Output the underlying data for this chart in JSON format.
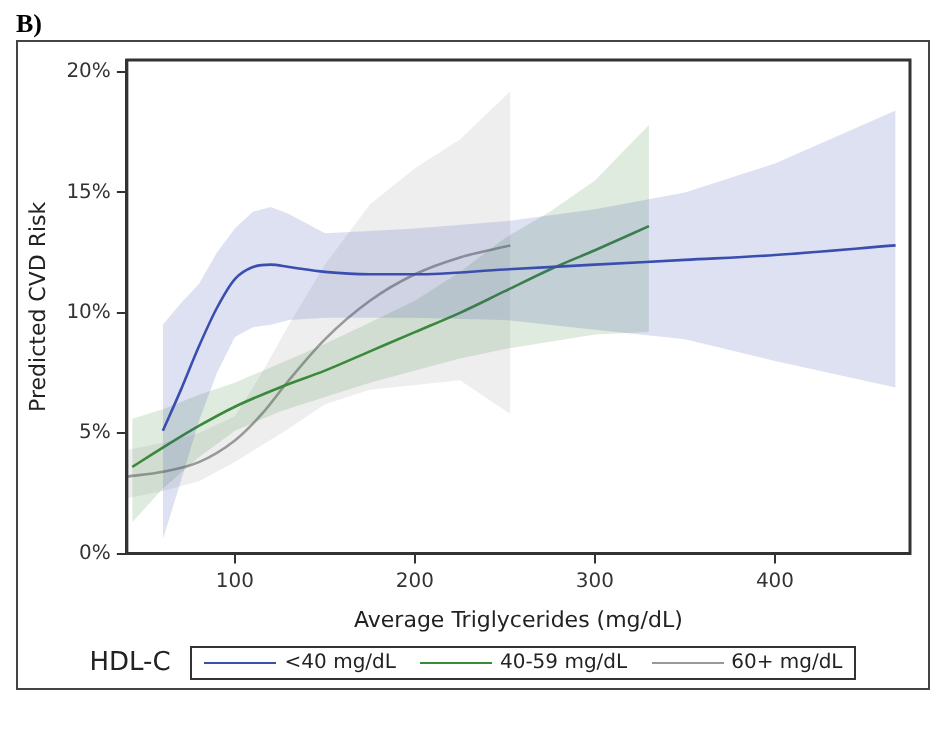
{
  "chart_data": {
    "type": "line",
    "title": "B)",
    "xlabel": "Average Triglycerides (mg/dL)",
    "ylabel": "Predicted CVD Risk",
    "legend_title": "HDL-C",
    "legend": "bottom",
    "grid": false,
    "marker": "none",
    "line_style": "solid",
    "xlim": [
      40,
      475
    ],
    "xticks": [
      100,
      200,
      300,
      400
    ],
    "ylim": [
      0,
      20.5
    ],
    "yticks": [
      {
        "value": 0,
        "label": "0%"
      },
      {
        "value": 5,
        "label": "5%"
      },
      {
        "value": 10,
        "label": "10%"
      },
      {
        "value": 15,
        "label": "15%"
      },
      {
        "value": 20,
        "label": "20%"
      }
    ],
    "series": [
      {
        "name": "<40 mg/dL",
        "color": "#3a4fb0",
        "x": [
          60,
          70,
          80,
          90,
          100,
          110,
          120,
          130,
          150,
          175,
          200,
          250,
          300,
          350,
          400,
          467
        ],
        "values": [
          5.1,
          6.8,
          8.6,
          10.2,
          11.4,
          11.9,
          12.0,
          11.9,
          11.7,
          11.6,
          11.6,
          11.8,
          12.0,
          12.2,
          12.4,
          12.8
        ],
        "upper": [
          9.5,
          10.4,
          11.2,
          12.5,
          13.5,
          14.2,
          14.4,
          14.1,
          13.3,
          13.4,
          13.5,
          13.8,
          14.3,
          15.0,
          16.2,
          18.4
        ],
        "lower": [
          0.6,
          3.0,
          5.5,
          7.5,
          9.0,
          9.4,
          9.5,
          9.7,
          9.8,
          9.8,
          9.8,
          9.7,
          9.3,
          8.9,
          8.0,
          6.9
        ]
      },
      {
        "name": "40-59 mg/dL",
        "color": "#3a8a3a",
        "x": [
          43,
          60,
          80,
          100,
          125,
          150,
          175,
          200,
          225,
          250,
          275,
          300,
          330
        ],
        "values": [
          3.6,
          4.4,
          5.3,
          6.1,
          6.9,
          7.6,
          8.4,
          9.2,
          10.0,
          10.9,
          11.8,
          12.6,
          13.6
        ],
        "upper": [
          5.6,
          6.0,
          6.6,
          7.1,
          7.9,
          8.7,
          9.6,
          10.5,
          11.7,
          13.1,
          14.2,
          15.5,
          17.8
        ],
        "lower": [
          1.3,
          2.7,
          4.0,
          5.1,
          5.9,
          6.5,
          7.1,
          7.6,
          8.1,
          8.5,
          8.8,
          9.1,
          9.2
        ]
      },
      {
        "name": "60+ mg/dL",
        "color": "#999999",
        "x": [
          40,
          60,
          80,
          100,
          115,
          130,
          150,
          175,
          200,
          225,
          253
        ],
        "values": [
          3.2,
          3.4,
          3.8,
          4.7,
          5.8,
          7.2,
          8.9,
          10.5,
          11.6,
          12.3,
          12.8
        ],
        "upper": [
          4.3,
          4.6,
          5.0,
          5.7,
          7.5,
          9.5,
          12.0,
          14.5,
          16.0,
          17.2,
          19.2
        ],
        "lower": [
          2.3,
          2.6,
          3.0,
          3.8,
          4.5,
          5.2,
          6.2,
          6.8,
          7.0,
          7.2,
          5.8
        ]
      }
    ]
  }
}
